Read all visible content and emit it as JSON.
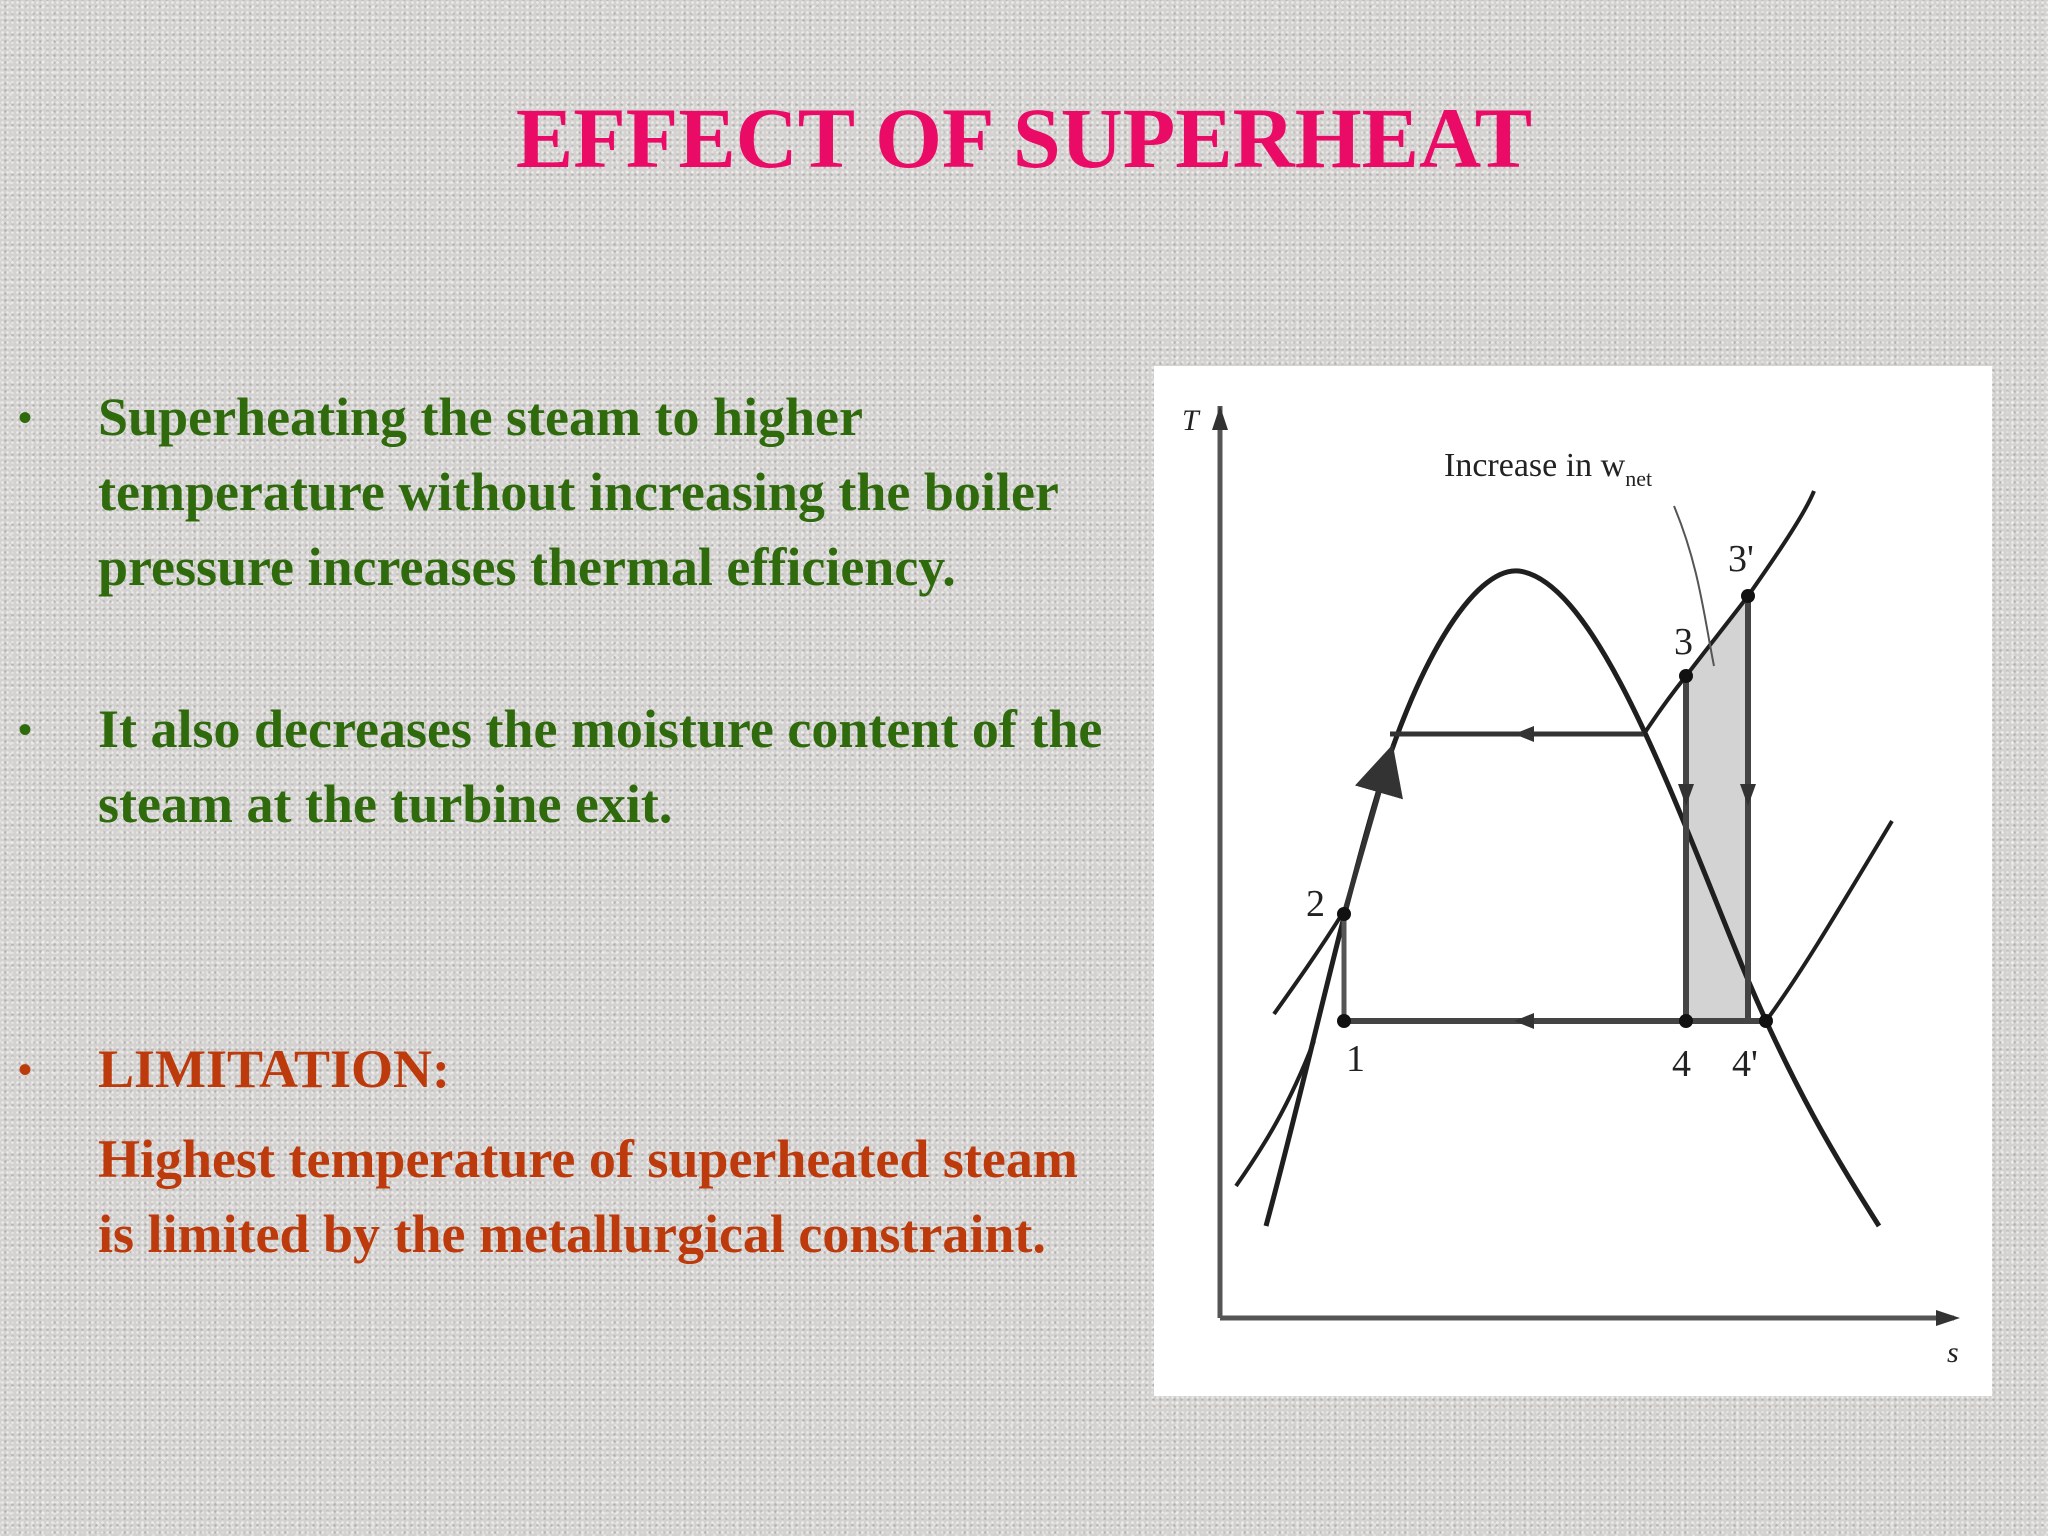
{
  "slide": {
    "title": "EFFECT OF SUPERHEAT",
    "bullets": [
      {
        "text": "Superheating the steam to higher temperature without increasing the boiler pressure increases thermal efficiency.",
        "color": "#2f6a0c"
      },
      {
        "text": "It also decreases the moisture content of the steam at the turbine exit.",
        "color": "#2f6a0c"
      },
      {
        "text": "LIMITATION:",
        "color": "#bd3a0d"
      }
    ],
    "limitation_detail": "Highest temperature of superheated steam is limited by the metallurgical constraint.",
    "title_color": "#ea0b66"
  },
  "diagram": {
    "axis_y_label": "T",
    "axis_x_label": "s",
    "annotation": "Increase in w",
    "annotation_subscript": "net",
    "points": {
      "p1": "1",
      "p2": "2",
      "p3": "3",
      "p3prime": "3'",
      "p4": "4",
      "p4prime": "4'"
    },
    "shaded_color": "#d3d3d3"
  }
}
